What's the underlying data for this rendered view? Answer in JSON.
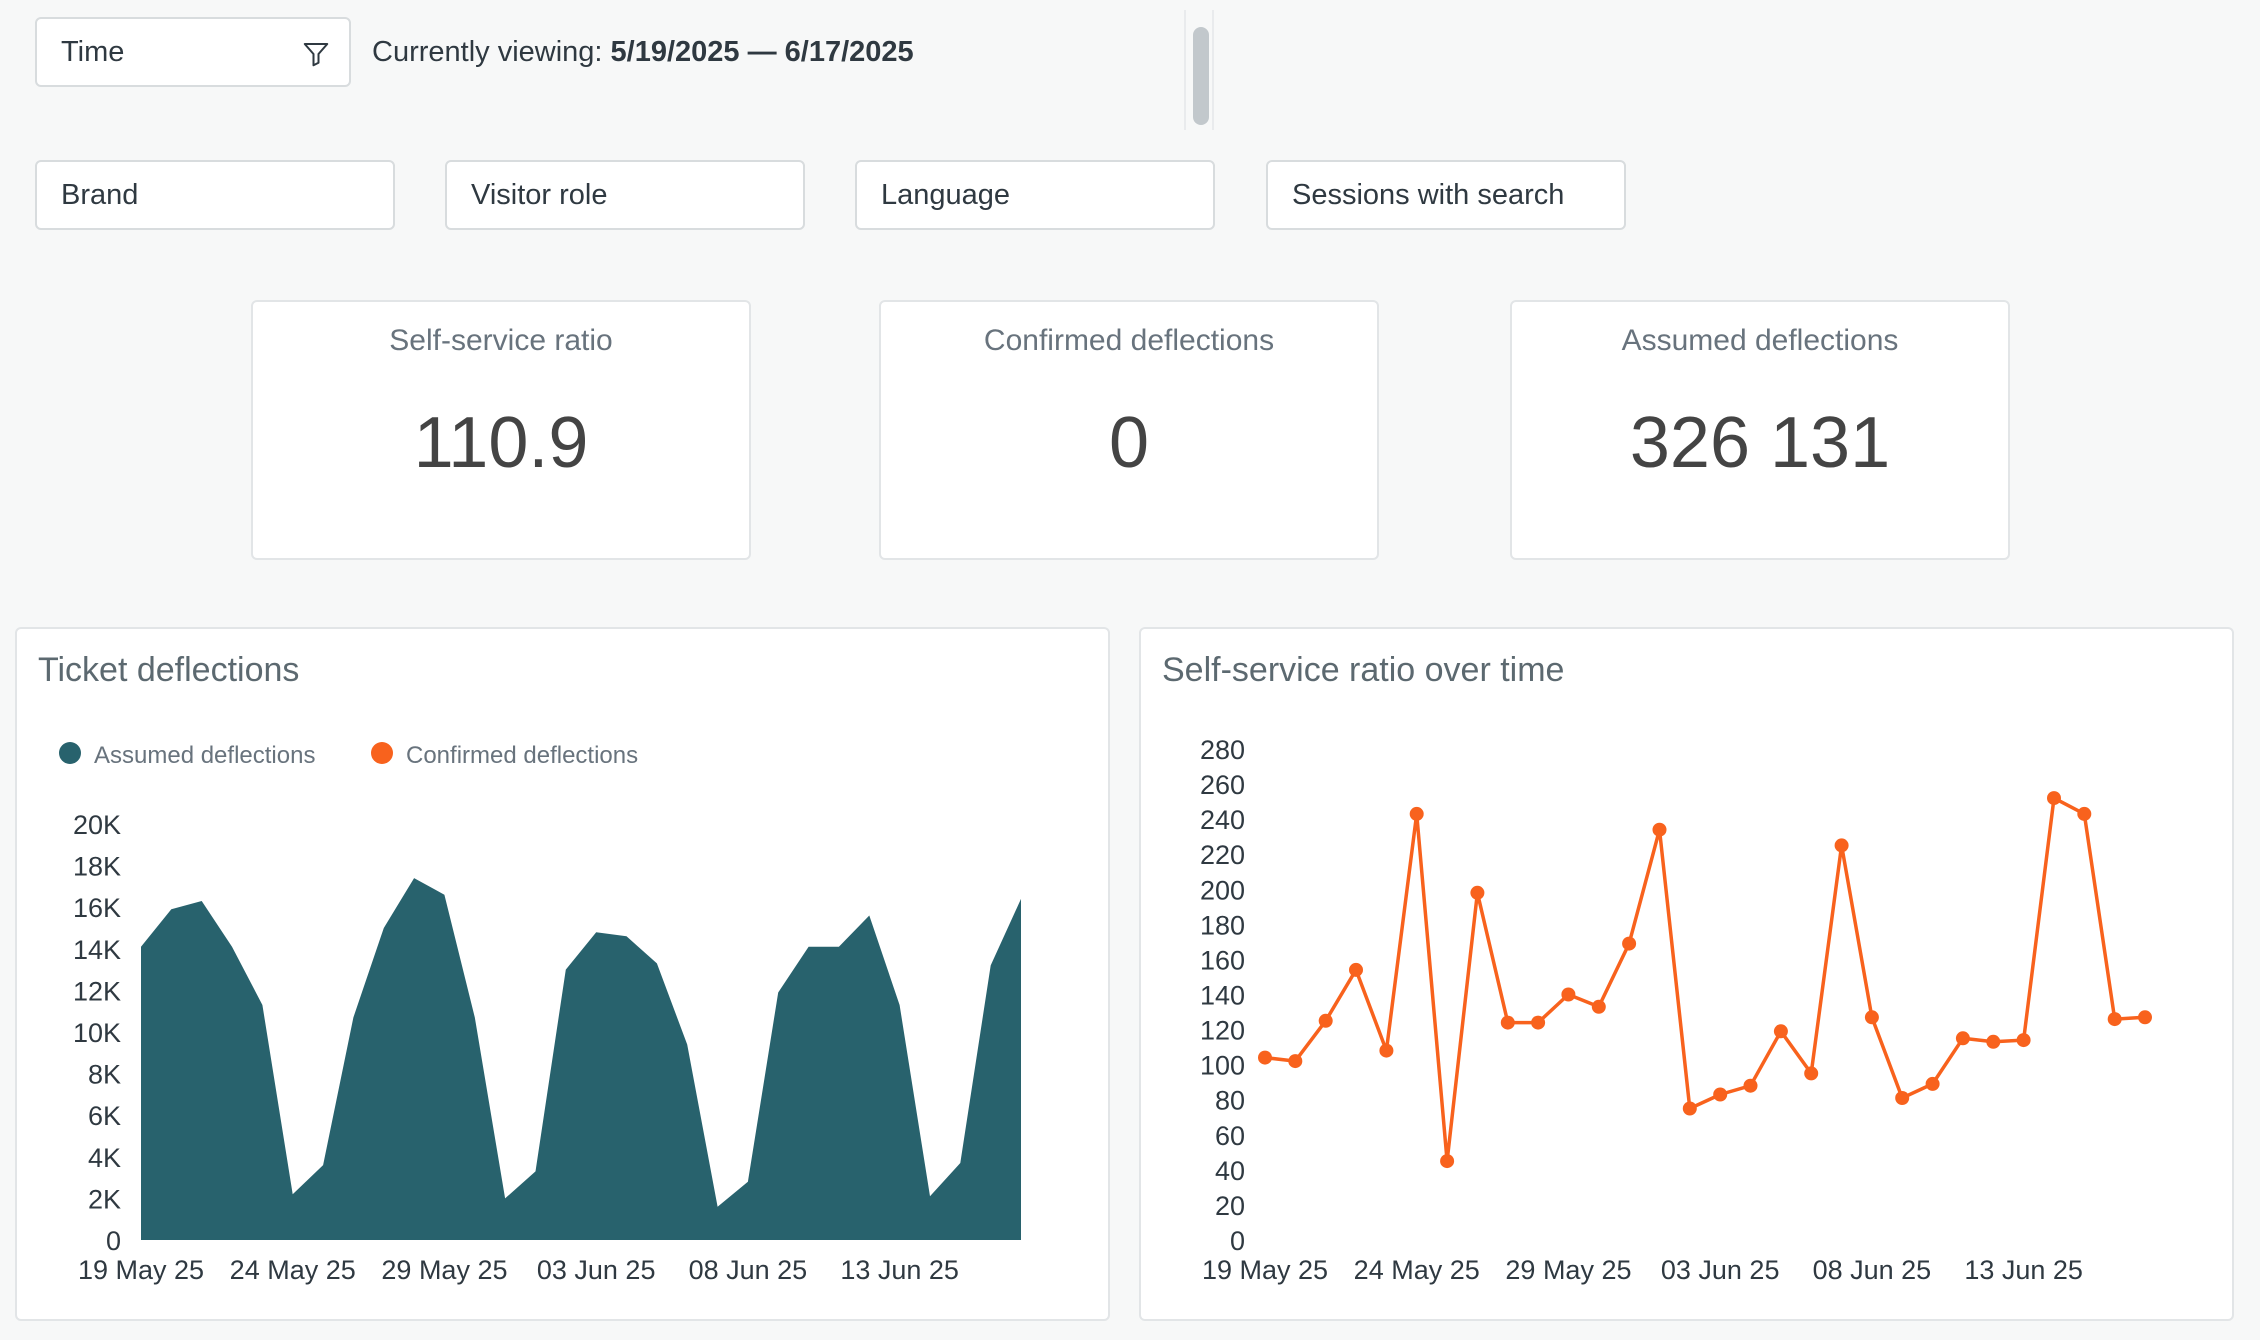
{
  "filters": {
    "time": {
      "label": "Time"
    },
    "viewing": {
      "prefix": "Currently viewing: ",
      "range": "5/19/2025 — 6/17/2025"
    },
    "brand": "Brand",
    "visitor_role": "Visitor role",
    "language": "Language",
    "sessions_with_search": "Sessions with search"
  },
  "kpis": [
    {
      "label": "Self-service ratio",
      "value": "110.9"
    },
    {
      "label": "Confirmed deflections",
      "value": "0"
    },
    {
      "label": "Assumed deflections",
      "value": "326 131"
    }
  ],
  "colors": {
    "assumed": "#28626d",
    "confirmed": "#f8621d"
  },
  "chart_data": [
    {
      "type": "area",
      "title": "Ticket deflections",
      "legend": [
        "Assumed deflections",
        "Confirmed deflections"
      ],
      "legend_position": "top-left",
      "x_tick_labels": [
        "19 May 25",
        "24 May 25",
        "29 May 25",
        "03 Jun 25",
        "08 Jun 25",
        "13 Jun 25"
      ],
      "y_tick_labels": [
        "0",
        "2K",
        "4K",
        "6K",
        "8K",
        "10K",
        "12K",
        "14K",
        "16K",
        "18K",
        "20K"
      ],
      "ylim": [
        0,
        20000
      ],
      "grid": false,
      "x": [
        "19 May 25",
        "20 May 25",
        "21 May 25",
        "22 May 25",
        "23 May 25",
        "24 May 25",
        "25 May 25",
        "26 May 25",
        "27 May 25",
        "28 May 25",
        "29 May 25",
        "30 May 25",
        "31 May 25",
        "01 Jun 25",
        "02 Jun 25",
        "03 Jun 25",
        "04 Jun 25",
        "05 Jun 25",
        "06 Jun 25",
        "07 Jun 25",
        "08 Jun 25",
        "09 Jun 25",
        "10 Jun 25",
        "11 Jun 25",
        "12 Jun 25",
        "13 Jun 25",
        "14 Jun 25",
        "15 Jun 25",
        "16 Jun 25",
        "17 Jun 25"
      ],
      "series": [
        {
          "name": "Assumed deflections",
          "values": [
            14100,
            15900,
            16300,
            14100,
            11300,
            2200,
            3600,
            10700,
            15000,
            17400,
            16600,
            10700,
            2000,
            3300,
            13000,
            14800,
            14600,
            13300,
            9400,
            1600,
            2800,
            11900,
            14100,
            14100,
            15600,
            11300,
            2100,
            3700,
            13200,
            16400
          ]
        },
        {
          "name": "Confirmed deflections",
          "values": [
            0,
            0,
            0,
            0,
            0,
            0,
            0,
            0,
            0,
            0,
            0,
            0,
            0,
            0,
            0,
            0,
            0,
            0,
            0,
            0,
            0,
            0,
            0,
            0,
            0,
            0,
            0,
            0,
            0,
            0
          ]
        }
      ]
    },
    {
      "type": "line",
      "title": "Self-service ratio over time",
      "x_tick_labels": [
        "19 May 25",
        "24 May 25",
        "29 May 25",
        "03 Jun 25",
        "08 Jun 25",
        "13 Jun 25"
      ],
      "y_tick_labels": [
        "0",
        "20",
        "40",
        "60",
        "80",
        "100",
        "120",
        "140",
        "160",
        "180",
        "200",
        "220",
        "240",
        "260",
        "280"
      ],
      "ylim": [
        0,
        280
      ],
      "grid": false,
      "x": [
        "19 May 25",
        "20 May 25",
        "21 May 25",
        "22 May 25",
        "23 May 25",
        "24 May 25",
        "25 May 25",
        "26 May 25",
        "27 May 25",
        "28 May 25",
        "29 May 25",
        "30 May 25",
        "31 May 25",
        "01 Jun 25",
        "02 Jun 25",
        "03 Jun 25",
        "04 Jun 25",
        "05 Jun 25",
        "06 Jun 25",
        "07 Jun 25",
        "08 Jun 25",
        "09 Jun 25",
        "10 Jun 25",
        "11 Jun 25",
        "12 Jun 25",
        "13 Jun 25",
        "14 Jun 25",
        "15 Jun 25",
        "16 Jun 25",
        "17 Jun 25"
      ],
      "series": [
        {
          "name": "Self-service ratio",
          "values": [
            104,
            102,
            125,
            154,
            108,
            243,
            45,
            198,
            124,
            124,
            140,
            133,
            169,
            234,
            75,
            83,
            88,
            119,
            95,
            225,
            127,
            81,
            89,
            115,
            113,
            114,
            252,
            243,
            126,
            127
          ]
        }
      ]
    }
  ]
}
